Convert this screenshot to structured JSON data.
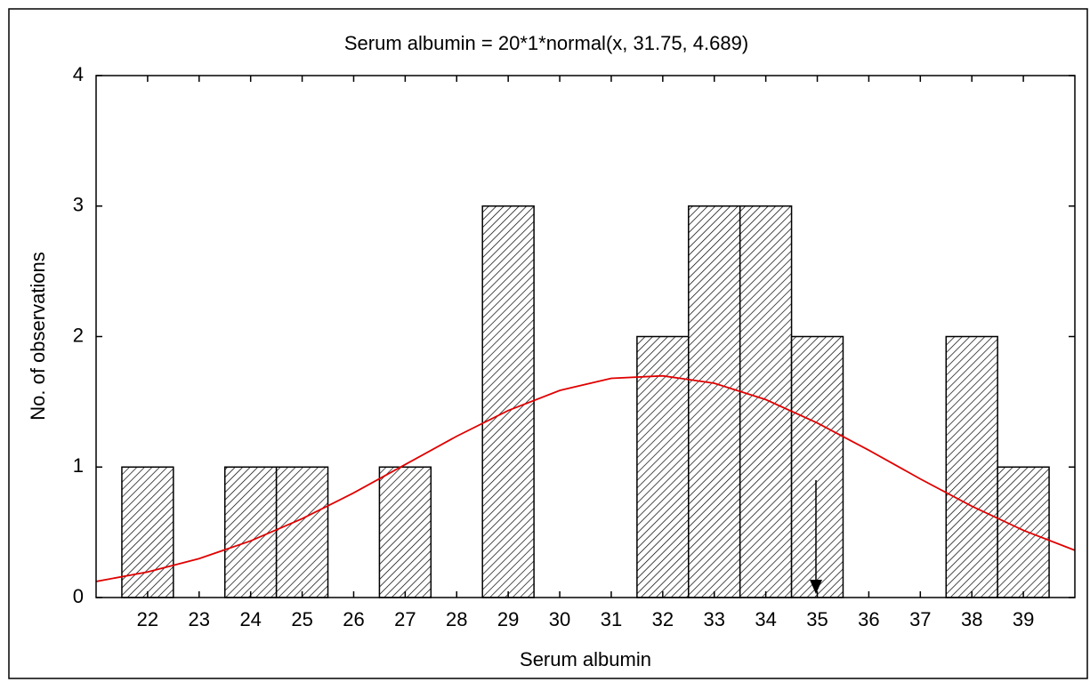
{
  "chart_data": {
    "type": "histogram",
    "title": "Serum albumin = 20*1*normal(x, 31.75, 4.689)",
    "xlabel": "Serum albumin",
    "ylabel": "No. of observations",
    "bins": [
      21.5,
      22.5,
      23.5,
      24.5,
      25.5,
      26.5,
      27.5,
      28.5,
      29.5,
      30.5,
      31.5,
      32.5,
      33.5,
      34.5,
      35.5,
      36.5,
      37.5,
      38.5,
      39.5
    ],
    "values": [
      1,
      0,
      1,
      1,
      0,
      1,
      0,
      3,
      0,
      0,
      2,
      3,
      3,
      2,
      0,
      0,
      2,
      1
    ],
    "color": "#ffffff",
    "xlim": [
      21,
      40
    ],
    "xticks": [
      22,
      23,
      24,
      25,
      26,
      27,
      28,
      29,
      30,
      31,
      32,
      33,
      34,
      35,
      36,
      37,
      38,
      39
    ],
    "ylim": [
      0,
      4
    ],
    "yticks": [
      0,
      1,
      2,
      3,
      4
    ],
    "curve": {
      "color": "#e00000",
      "x": [
        21,
        22,
        23,
        24,
        25,
        26,
        27,
        28,
        29,
        30,
        31,
        32,
        33,
        34,
        35,
        36,
        37,
        38,
        39,
        40
      ],
      "y": [
        0.123,
        0.196,
        0.298,
        0.434,
        0.604,
        0.802,
        1.019,
        1.236,
        1.433,
        1.587,
        1.68,
        1.699,
        1.642,
        1.517,
        1.338,
        1.129,
        0.909,
        0.7,
        0.515,
        0.362
      ]
    }
  }
}
